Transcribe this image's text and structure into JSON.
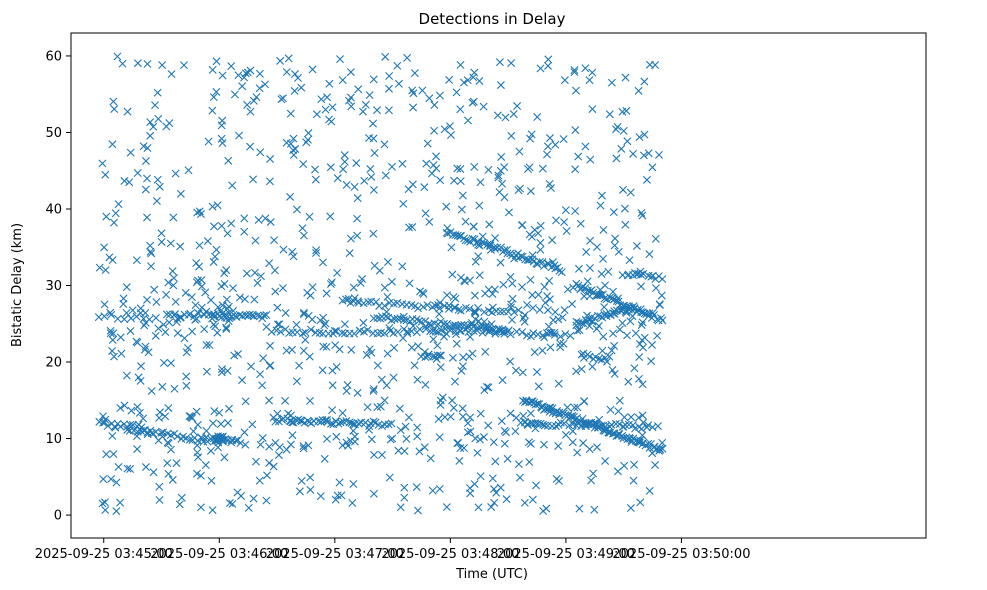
{
  "chart_data": {
    "type": "scatter",
    "title": "Detections in Delay",
    "xlabel": "Time (UTC)",
    "ylabel": "Bistatic Delay (km)",
    "marker": "x",
    "color": "#1f77b4",
    "x_unit": "seconds since 2025-09-25 03:45:00",
    "xlim": [
      -17,
      427
    ],
    "ylim": [
      -3,
      63
    ],
    "x_ticks": [
      0,
      60,
      120,
      180,
      240,
      300
    ],
    "x_tick_labels": [
      "2025-09-25 03:45:00",
      "2025-09-25 03:46:00",
      "2025-09-25 03:47:00",
      "2025-09-25 03:48:00",
      "2025-09-25 03:49:00",
      "2025-09-25 03:50:00"
    ],
    "y_ticks": [
      0,
      10,
      20,
      30,
      40,
      50,
      60
    ],
    "y_tick_labels": [
      "0",
      "10",
      "20",
      "30",
      "40",
      "50",
      "60"
    ],
    "x_data_range": [
      -3,
      290
    ],
    "tracks": [
      {
        "name": "track-low-a",
        "x_start": -2,
        "y_start": 12.0,
        "x_end": 20,
        "y_end": 11.5,
        "count": 15
      },
      {
        "name": "track-low-b",
        "x_start": 12,
        "y_start": 11.2,
        "x_end": 38,
        "y_end": 10.5,
        "count": 16
      },
      {
        "name": "track-low-c",
        "x_start": 40,
        "y_start": 10.2,
        "x_end": 70,
        "y_end": 9.5,
        "count": 22
      },
      {
        "name": "track-low-d",
        "x_start": 58,
        "y_start": 10.0,
        "x_end": 62,
        "y_end": 10.0,
        "count": 18
      },
      {
        "name": "track-low-e",
        "x_start": 88,
        "y_start": 12.5,
        "x_end": 130,
        "y_end": 12.0,
        "count": 32
      },
      {
        "name": "track-low-f",
        "x_start": 130,
        "y_start": 12.0,
        "x_end": 150,
        "y_end": 11.8,
        "count": 12
      },
      {
        "name": "track-low-g",
        "x_start": 217,
        "y_start": 12.0,
        "x_end": 285,
        "y_end": 11.5,
        "count": 40
      },
      {
        "name": "track-low-h",
        "x_start": 218,
        "y_start": 15.0,
        "x_end": 290,
        "y_end": 8.5,
        "count": 80
      },
      {
        "name": "track-mid-a",
        "x_start": -3,
        "y_start": 26.0,
        "x_end": 27,
        "y_end": 25.5,
        "count": 10
      },
      {
        "name": "track-mid-b",
        "x_start": 33,
        "y_start": 26.0,
        "x_end": 65,
        "y_end": 26.5,
        "count": 22
      },
      {
        "name": "track-mid-c",
        "x_start": 60,
        "y_start": 26.0,
        "x_end": 85,
        "y_end": 26.0,
        "count": 20
      },
      {
        "name": "track-mid-d",
        "x_start": 87,
        "y_start": 24.0,
        "x_end": 210,
        "y_end": 24.0,
        "count": 55
      },
      {
        "name": "track-mid-e",
        "x_start": 128,
        "y_start": 27.8,
        "x_end": 215,
        "y_end": 26.5,
        "count": 40
      },
      {
        "name": "track-mid-f",
        "x_start": 140,
        "y_start": 26.0,
        "x_end": 210,
        "y_end": 24.0,
        "count": 45
      },
      {
        "name": "track-mid-g",
        "x_start": 200,
        "y_start": 24.0,
        "x_end": 240,
        "y_end": 23.5,
        "count": 15
      },
      {
        "name": "track-mid-h",
        "x_start": 245,
        "y_start": 30.0,
        "x_end": 290,
        "y_end": 25.5,
        "count": 45
      },
      {
        "name": "track-mid-i",
        "x_start": 245,
        "y_start": 25.0,
        "x_end": 275,
        "y_end": 27.0,
        "count": 30
      },
      {
        "name": "track-mid-j",
        "x_start": 270,
        "y_start": 31.5,
        "x_end": 290,
        "y_end": 31.0,
        "count": 14
      },
      {
        "name": "track-high-a",
        "x_start": 178,
        "y_start": 37.0,
        "x_end": 238,
        "y_end": 32.0,
        "count": 55
      },
      {
        "name": "track-seg-a",
        "x_start": 248,
        "y_start": 20.8,
        "x_end": 262,
        "y_end": 20.5,
        "count": 10
      },
      {
        "name": "track-seg-b",
        "x_start": 165,
        "y_start": 20.8,
        "x_end": 175,
        "y_end": 20.8,
        "count": 8
      }
    ],
    "clutter": {
      "count": 800,
      "x_range": [
        -3,
        290
      ],
      "y_range": [
        0.5,
        60
      ],
      "seed": 20250925
    },
    "clutter_bands": [
      {
        "count": 150,
        "x_range": [
          -3,
          290
        ],
        "y_range": [
          21,
          31
        ],
        "seed": 777
      },
      {
        "count": 90,
        "x_range": [
          -3,
          290
        ],
        "y_range": [
          8,
          15
        ],
        "seed": 4242
      }
    ],
    "grid": false,
    "legend": "none"
  }
}
